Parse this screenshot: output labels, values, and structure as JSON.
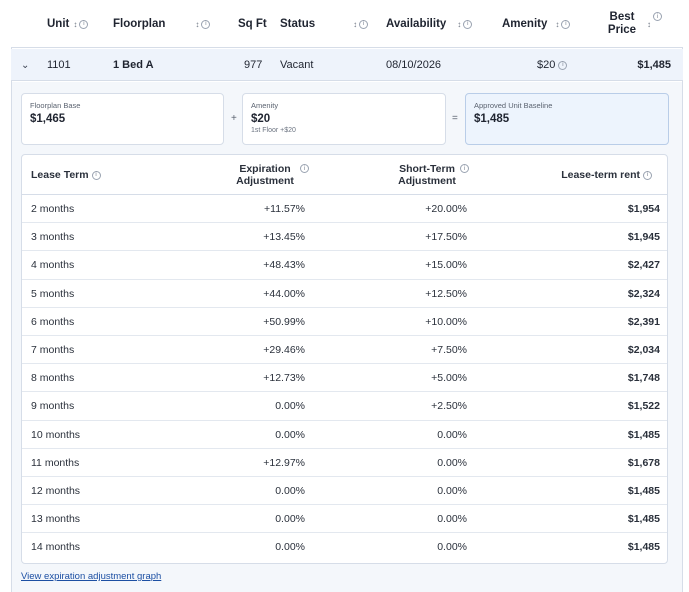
{
  "header": {
    "columns": [
      {
        "label": "Unit",
        "sortable": true,
        "info": true
      },
      {
        "label": "Floorplan",
        "sortable": true,
        "info": true
      },
      {
        "label": "Sq Ft",
        "sortable": false,
        "info": false
      },
      {
        "label": "Status",
        "sortable": true,
        "info": true
      },
      {
        "label": "Availability",
        "sortable": true,
        "info": true
      },
      {
        "label": "Amenity",
        "sortable": true,
        "info": true
      },
      {
        "label": "Best Price",
        "sortable": true,
        "info": true
      }
    ]
  },
  "unit_row": {
    "toggle": "⌄",
    "unit": "1101",
    "floorplan": "1 Bed A",
    "sqft": "977",
    "status": "Vacant",
    "availability": "08/10/2026",
    "amenity": "$20",
    "best_price": "$1,485"
  },
  "breakdown": {
    "floorplan_base": {
      "label": "Floorplan Base",
      "value": "$1,465"
    },
    "plus": "+",
    "amenity": {
      "label": "Amenity",
      "value": "$20",
      "detail": "1st Floor +$20"
    },
    "equals": "=",
    "baseline": {
      "label": "Approved Unit Baseline",
      "value": "$1,485"
    }
  },
  "lease_table": {
    "headers": {
      "term": "Lease Term",
      "expiration": "Expiration Adjustment",
      "short_term": "Short-Term Adjustment",
      "rent": "Lease-term rent"
    },
    "rows": [
      {
        "term": "2 months",
        "expiration": "+11.57%",
        "short_term": "+20.00%",
        "rent": "$1,954"
      },
      {
        "term": "3 months",
        "expiration": "+13.45%",
        "short_term": "+17.50%",
        "rent": "$1,945"
      },
      {
        "term": "4 months",
        "expiration": "+48.43%",
        "short_term": "+15.00%",
        "rent": "$2,427"
      },
      {
        "term": "5 months",
        "expiration": "+44.00%",
        "short_term": "+12.50%",
        "rent": "$2,324"
      },
      {
        "term": "6 months",
        "expiration": "+50.99%",
        "short_term": "+10.00%",
        "rent": "$2,391"
      },
      {
        "term": "7 months",
        "expiration": "+29.46%",
        "short_term": "+7.50%",
        "rent": "$2,034"
      },
      {
        "term": "8 months",
        "expiration": "+12.73%",
        "short_term": "+5.00%",
        "rent": "$1,748"
      },
      {
        "term": "9 months",
        "expiration": "0.00%",
        "short_term": "+2.50%",
        "rent": "$1,522"
      },
      {
        "term": "10 months",
        "expiration": "0.00%",
        "short_term": "0.00%",
        "rent": "$1,485"
      },
      {
        "term": "11 months",
        "expiration": "+12.97%",
        "short_term": "0.00%",
        "rent": "$1,678"
      },
      {
        "term": "12 months",
        "expiration": "0.00%",
        "short_term": "0.00%",
        "rent": "$1,485"
      },
      {
        "term": "13 months",
        "expiration": "0.00%",
        "short_term": "0.00%",
        "rent": "$1,485"
      },
      {
        "term": "14 months",
        "expiration": "0.00%",
        "short_term": "0.00%",
        "rent": "$1,485"
      }
    ]
  },
  "graph_link": "View expiration adjustment graph",
  "icons": {
    "sort": "sort-icon",
    "info": "info-icon",
    "chevron": "chevron-down-icon"
  },
  "colors": {
    "row_highlight": "#eef3fb",
    "baseline_card": "#edf4fd",
    "link": "#1c4fa3",
    "border": "#d6dde8"
  }
}
